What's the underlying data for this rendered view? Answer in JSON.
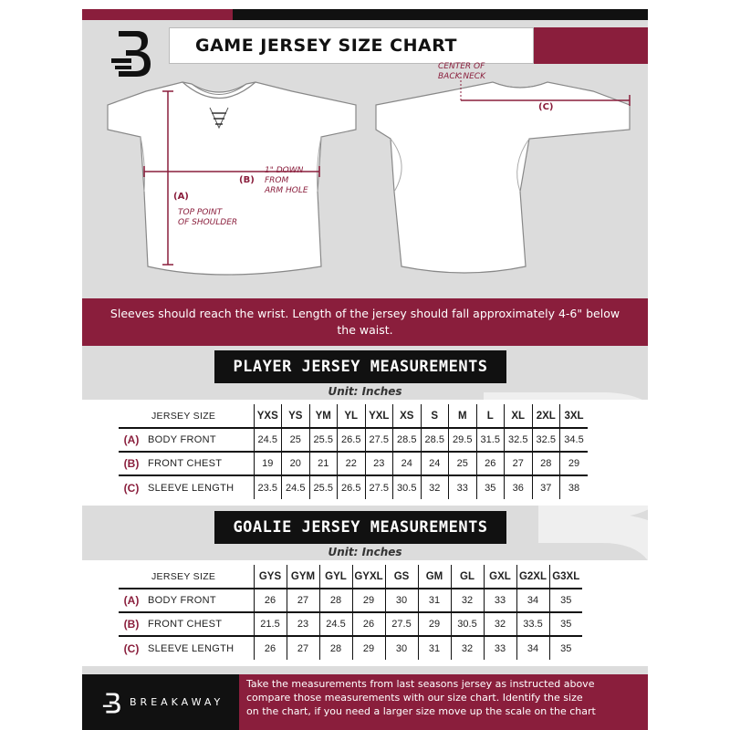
{
  "title": "GAME JERSEY SIZE CHART",
  "colors": {
    "accent": "#8a1e3c",
    "dark": "#111111",
    "panel": "#dcdcdc"
  },
  "annotations": {
    "center_back_neck": [
      "CENTER OF",
      "BACK NECK"
    ],
    "label_a": "(A)",
    "label_b": "(B)",
    "label_c": "(C)",
    "one_inch_down": [
      "1\" DOWN",
      "FROM",
      "ARM HOLE"
    ],
    "top_point": [
      "TOP POINT",
      "OF SHOULDER"
    ]
  },
  "info_text": "Sleeves should reach the wrist. Length of the jersey should fall approximately 4-6\" below the waist.",
  "player": {
    "title": "PLAYER JERSEY MEASUREMENTS",
    "unit": "Unit: Inches",
    "size_header": "JERSEY SIZE",
    "sizes": [
      "YXS",
      "YS",
      "YM",
      "YL",
      "YXL",
      "XS",
      "S",
      "M",
      "L",
      "XL",
      "2XL",
      "3XL"
    ],
    "rows": [
      {
        "letter": "(A)",
        "label": "BODY FRONT",
        "values": [
          "24.5",
          "25",
          "25.5",
          "26.5",
          "27.5",
          "28.5",
          "28.5",
          "29.5",
          "31.5",
          "32.5",
          "32.5",
          "34.5"
        ]
      },
      {
        "letter": "(B)",
        "label": "FRONT CHEST",
        "values": [
          "19",
          "20",
          "21",
          "22",
          "23",
          "24",
          "24",
          "25",
          "26",
          "27",
          "28",
          "29"
        ]
      },
      {
        "letter": "(C)",
        "label": "SLEEVE LENGTH",
        "values": [
          "23.5",
          "24.5",
          "25.5",
          "26.5",
          "27.5",
          "30.5",
          "32",
          "33",
          "35",
          "36",
          "37",
          "38"
        ]
      }
    ]
  },
  "goalie": {
    "title": "GOALIE JERSEY MEASUREMENTS",
    "unit": "Unit: Inches",
    "size_header": "JERSEY SIZE",
    "sizes": [
      "GYS",
      "GYM",
      "GYL",
      "GYXL",
      "GS",
      "GM",
      "GL",
      "GXL",
      "G2XL",
      "G3XL"
    ],
    "rows": [
      {
        "letter": "(A)",
        "label": "BODY FRONT",
        "values": [
          "26",
          "27",
          "28",
          "29",
          "30",
          "31",
          "32",
          "33",
          "34",
          "35"
        ]
      },
      {
        "letter": "(B)",
        "label": "FRONT CHEST",
        "values": [
          "21.5",
          "23",
          "24.5",
          "26",
          "27.5",
          "29",
          "30.5",
          "32",
          "33.5",
          "35"
        ]
      },
      {
        "letter": "(C)",
        "label": "SLEEVE LENGTH",
        "values": [
          "26",
          "27",
          "28",
          "29",
          "30",
          "31",
          "32",
          "33",
          "34",
          "35"
        ]
      }
    ]
  },
  "footer": {
    "brand": "BREAKAWAY",
    "lines": [
      "Take the measurements from last seasons jersey as instructed above",
      "compare those measurements  with our size chart. Identify the size",
      "on the chart, if you need a larger size move up the scale on the chart"
    ]
  }
}
